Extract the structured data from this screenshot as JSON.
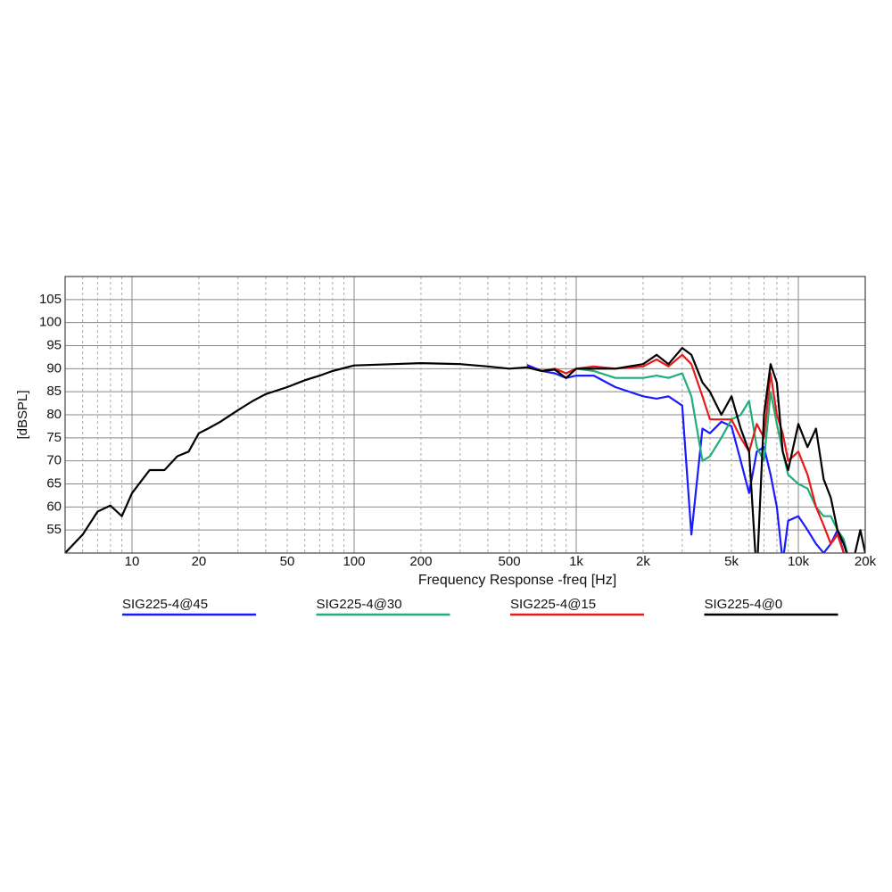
{
  "chart_data": {
    "type": "line",
    "x_label": "Frequency Response -freq [Hz]",
    "y_label": "[dBSPL]",
    "x_scale": "log",
    "grid": true,
    "xlim": [
      5,
      20000
    ],
    "ylim": [
      50,
      110
    ],
    "xticks": [
      10,
      20,
      50,
      100,
      200,
      500,
      {
        "value": 1000,
        "label": "1k"
      },
      {
        "value": 2000,
        "label": "2k"
      },
      {
        "value": 5000,
        "label": "5k"
      },
      {
        "value": 10000,
        "label": "10k"
      },
      {
        "value": 20000,
        "label": "20k"
      }
    ],
    "x_minor_ticks": [
      6,
      7,
      8,
      9,
      30,
      40,
      60,
      70,
      80,
      90,
      300,
      400,
      600,
      700,
      800,
      900,
      3000,
      4000,
      6000,
      7000,
      8000,
      9000
    ],
    "yticks": [
      55,
      60,
      65,
      70,
      75,
      80,
      85,
      90,
      95,
      100,
      105
    ],
    "x": [
      5,
      6,
      7,
      8,
      9,
      10,
      12,
      14,
      16,
      18,
      20,
      22,
      25,
      30,
      35,
      40,
      50,
      60,
      70,
      80,
      100,
      150,
      200,
      300,
      400,
      500,
      600,
      700,
      800,
      900,
      1000,
      1200,
      1500,
      2000,
      2300,
      2600,
      3000,
      3300,
      3700,
      4000,
      4500,
      5000,
      5500,
      6000,
      6500,
      7000,
      7500,
      8000,
      8500,
      9000,
      10000,
      11000,
      12000,
      13000,
      14000,
      15000,
      16000,
      17000,
      18000,
      19000,
      20000
    ],
    "series": [
      {
        "name": "SIG225-4@45",
        "color": "#1a1aff",
        "values": [
          null,
          null,
          null,
          null,
          null,
          null,
          null,
          null,
          null,
          null,
          null,
          null,
          null,
          null,
          null,
          null,
          null,
          null,
          null,
          null,
          null,
          null,
          null,
          null,
          null,
          null,
          90.8,
          89.5,
          89,
          88,
          88.5,
          88.5,
          86,
          84,
          83.5,
          84,
          82,
          54,
          77,
          76,
          78.5,
          77.5,
          70,
          63,
          72,
          73,
          67,
          60,
          48,
          57,
          58,
          55,
          52,
          50,
          52,
          55,
          50,
          47,
          null,
          null,
          null
        ]
      },
      {
        "name": "SIG225-4@30",
        "color": "#1fae78",
        "values": [
          null,
          null,
          null,
          null,
          null,
          null,
          null,
          null,
          null,
          null,
          null,
          null,
          null,
          null,
          null,
          null,
          null,
          null,
          null,
          null,
          null,
          null,
          null,
          null,
          null,
          null,
          90.3,
          89.5,
          90,
          89,
          90,
          89.5,
          88,
          88,
          88.5,
          88,
          89,
          84,
          70,
          71,
          75,
          79,
          80,
          83,
          73,
          70,
          85,
          78,
          72,
          67,
          65,
          64,
          60,
          58,
          58,
          55,
          53,
          48,
          null,
          null,
          null
        ]
      },
      {
        "name": "SIG225-4@15",
        "color": "#e8191a",
        "values": [
          null,
          null,
          null,
          null,
          null,
          null,
          null,
          null,
          null,
          null,
          null,
          null,
          null,
          null,
          null,
          null,
          null,
          null,
          null,
          null,
          null,
          null,
          null,
          null,
          null,
          null,
          90.3,
          89.5,
          90,
          89,
          90,
          90.5,
          90,
          90.5,
          92,
          90.5,
          93,
          91,
          84,
          79,
          79,
          79,
          75,
          72,
          78,
          75,
          89,
          80,
          76,
          70,
          72,
          67,
          60,
          56,
          52,
          54,
          50,
          46,
          null,
          null,
          null
        ]
      },
      {
        "name": "SIG225-4@0",
        "color": "#000000",
        "values": [
          50,
          54,
          59,
          60.3,
          58,
          63,
          68,
          68,
          71,
          72,
          76,
          77,
          78.5,
          81,
          83,
          84.5,
          86,
          87.5,
          88.5,
          89.5,
          90.7,
          91,
          91.2,
          91,
          90.5,
          90,
          90.3,
          89.5,
          89.8,
          88,
          90,
          90,
          90,
          91,
          93,
          91,
          94.5,
          93,
          87,
          85,
          80,
          84,
          77,
          72,
          45,
          80,
          91,
          87,
          72,
          68,
          78,
          73,
          77,
          66,
          62,
          55,
          52,
          48,
          50,
          55,
          50
        ]
      }
    ]
  }
}
